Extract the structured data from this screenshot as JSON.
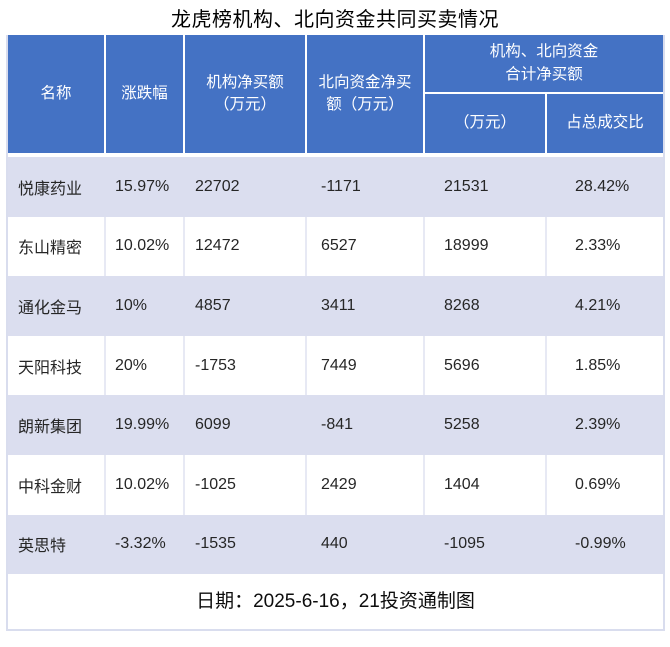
{
  "title": "龙虎榜机构、北向资金共同买卖情况",
  "header": {
    "name": "名称",
    "change": "涨跌幅",
    "inst_line1": "机构净买额",
    "inst_line2": "（万元）",
    "north_line1": "北向资金净买",
    "north_line2": "额（万元）",
    "combo_line1": "机构、北向资金",
    "combo_line2": "合计净买额",
    "combo_sub1": "（万元）",
    "combo_sub2": "占总成交比"
  },
  "rows": [
    {
      "name": "悦康药业",
      "change": "15.97%",
      "inst": "22702",
      "north": "-1171",
      "total": "21531",
      "ratio": "28.42%"
    },
    {
      "name": "东山精密",
      "change": "10.02%",
      "inst": "12472",
      "north": "6527",
      "total": "18999",
      "ratio": "2.33%"
    },
    {
      "name": "通化金马",
      "change": "10%",
      "inst": "4857",
      "north": "3411",
      "total": "8268",
      "ratio": "4.21%"
    },
    {
      "name": "天阳科技",
      "change": "20%",
      "inst": "-1753",
      "north": "7449",
      "total": "5696",
      "ratio": "1.85%"
    },
    {
      "name": "朗新集团",
      "change": "19.99%",
      "inst": "6099",
      "north": "-841",
      "total": "5258",
      "ratio": "2.39%"
    },
    {
      "name": "中科金财",
      "change": "10.02%",
      "inst": "-1025",
      "north": "2429",
      "total": "1404",
      "ratio": "0.69%"
    },
    {
      "name": "英思特",
      "change": "-3.32%",
      "inst": "-1535",
      "north": "440",
      "total": "-1095",
      "ratio": "-0.99%"
    }
  ],
  "footer": {
    "text": "日期：2025-6-16，21投资通制图"
  },
  "colors": {
    "header_bg": "#4472C4",
    "header_text": "#FFFFFF",
    "band_bg": "#DBDEEF",
    "card_border": "#D9DDEE"
  },
  "chart_data": {
    "type": "table",
    "title": "龙虎榜机构、北向资金共同买卖情况",
    "columns": [
      "名称",
      "涨跌幅",
      "机构净买额（万元）",
      "北向资金净买额（万元）",
      "机构、北向资金合计净买额（万元）",
      "机构、北向资金合计净买额占总成交比"
    ],
    "rows": [
      [
        "悦康药业",
        "15.97%",
        22702,
        -1171,
        21531,
        "28.42%"
      ],
      [
        "东山精密",
        "10.02%",
        12472,
        6527,
        18999,
        "2.33%"
      ],
      [
        "通化金马",
        "10%",
        4857,
        3411,
        8268,
        "4.21%"
      ],
      [
        "天阳科技",
        "20%",
        -1753,
        7449,
        5696,
        "1.85%"
      ],
      [
        "朗新集团",
        "19.99%",
        6099,
        -841,
        5258,
        "2.39%"
      ],
      [
        "中科金财",
        "10.02%",
        -1025,
        2429,
        1404,
        "0.69%"
      ],
      [
        "英思特",
        "-3.32%",
        -1535,
        440,
        -1095,
        "-0.99%"
      ]
    ],
    "note": "日期：2025-6-16，21投资通制图"
  }
}
